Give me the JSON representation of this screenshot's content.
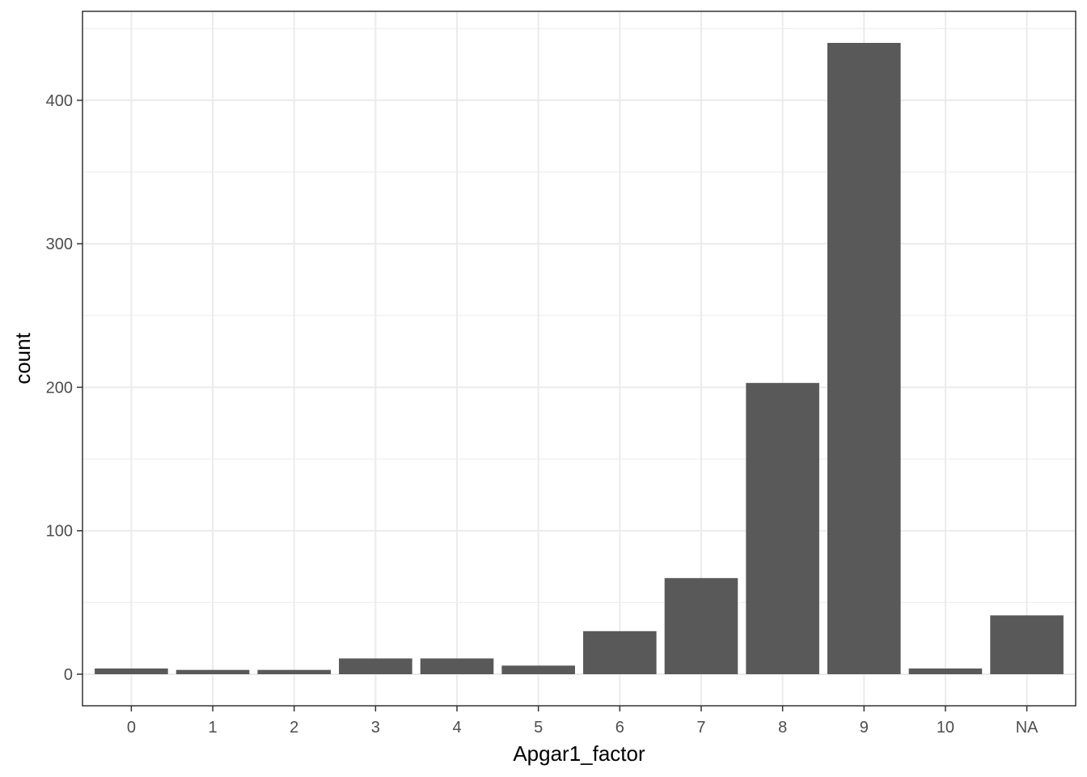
{
  "chart_data": {
    "type": "bar",
    "title": "",
    "xlabel": "Apgar1_factor",
    "ylabel": "count",
    "categories": [
      "0",
      "1",
      "2",
      "3",
      "4",
      "5",
      "6",
      "7",
      "8",
      "9",
      "10",
      "NA"
    ],
    "values": [
      4,
      3,
      3,
      11,
      11,
      6,
      30,
      67,
      203,
      440,
      4,
      41
    ],
    "ylim": [
      -22,
      462
    ],
    "yticks": [
      0,
      100,
      200,
      300,
      400
    ],
    "grid": true,
    "bar_color": "#595959",
    "grid_color": "#ebebeb",
    "panel_border_color": "#333333"
  }
}
